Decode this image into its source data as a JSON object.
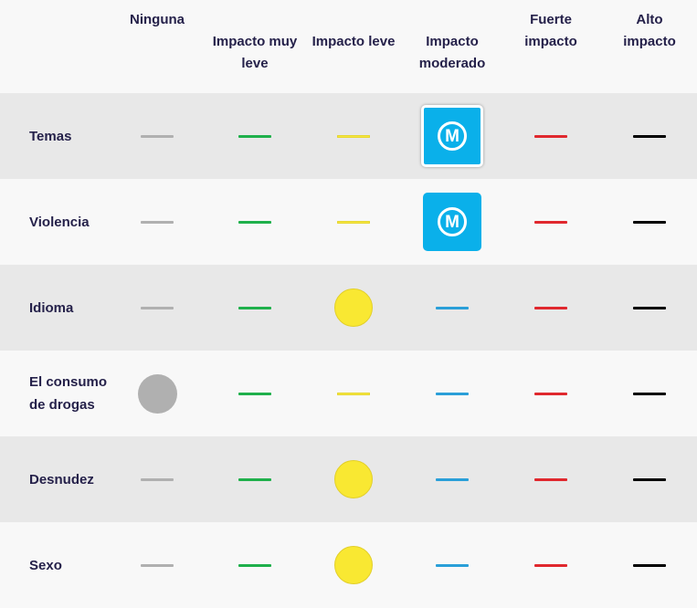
{
  "columns": [
    {
      "key": "ninguna",
      "label": "Ninguna",
      "color": "#b0b0b0"
    },
    {
      "key": "muy_leve",
      "label": "Impacto muy leve",
      "color": "#1fb04b"
    },
    {
      "key": "leve",
      "label": "Impacto leve",
      "color": "#f5e640"
    },
    {
      "key": "moderado",
      "label": "Impacto moderado",
      "color": "#2a9fd8"
    },
    {
      "key": "fuerte",
      "label": "Fuerte impacto",
      "color": "#e0282e"
    },
    {
      "key": "alto",
      "label": "Alto impacto",
      "color": "#000000"
    }
  ],
  "rows": [
    {
      "label": "Temas",
      "selected": "moderado",
      "marker": "badge",
      "badge_letter": "M",
      "badge_selected": true
    },
    {
      "label": "Violencia",
      "selected": "moderado",
      "marker": "badge",
      "badge_letter": "M",
      "badge_selected": false
    },
    {
      "label": "Idioma",
      "selected": "leve",
      "marker": "dot"
    },
    {
      "label": "El consumo de drogas",
      "selected": "ninguna",
      "marker": "dot"
    },
    {
      "label": "Desnudez",
      "selected": "leve",
      "marker": "dot"
    },
    {
      "label": "Sexo",
      "selected": "leve",
      "marker": "dot"
    }
  ],
  "badge_color": "#0ab0ea"
}
